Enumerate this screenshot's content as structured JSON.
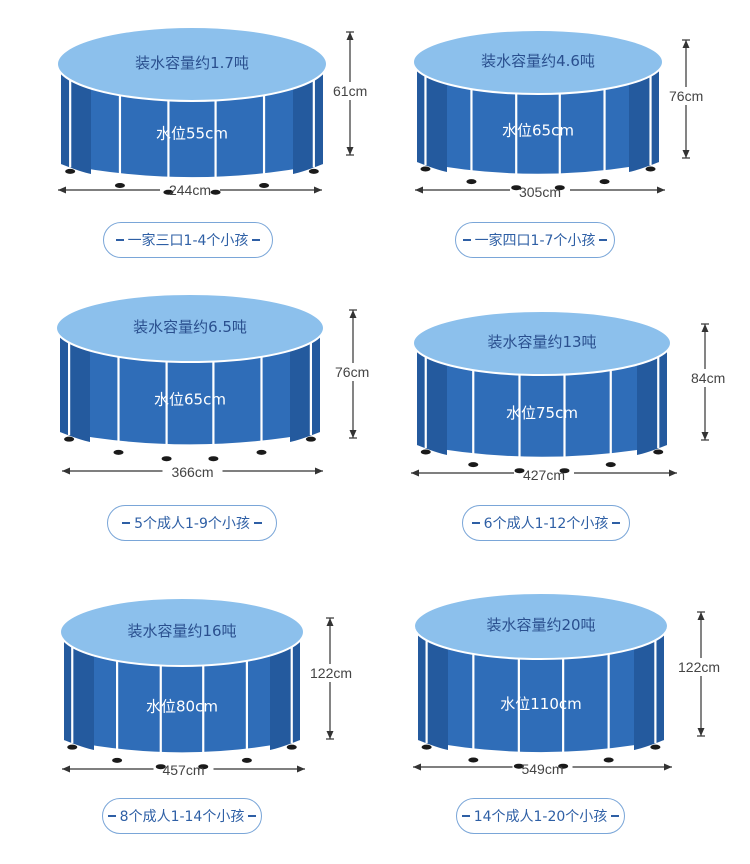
{
  "pools": [
    {
      "capacity": "装水容量约1.7吨",
      "water_level": "水位55cm",
      "height": "61cm",
      "diameter": "244cm",
      "people": "一家三口1-4个小孩"
    },
    {
      "capacity": "装水容量约4.6吨",
      "water_level": "水位65cm",
      "height": "76cm",
      "diameter": "305cm",
      "people": "一家四口1-7个小孩"
    },
    {
      "capacity": "装水容量约6.5吨",
      "water_level": "水位65cm",
      "height": "76cm",
      "diameter": "366cm",
      "people": "5个成人1-9个小孩"
    },
    {
      "capacity": "装水容量约13吨",
      "water_level": "水位75cm",
      "height": "84cm",
      "diameter": "427cm",
      "people": "6个成人1-12个小孩"
    },
    {
      "capacity": "装水容量约16吨",
      "water_level": "水位80cm",
      "height": "122cm",
      "diameter": "457cm",
      "people": "8个成人1-14个小孩"
    },
    {
      "capacity": "装水容量约20吨",
      "water_level": "水位110cm",
      "height": "122cm",
      "diameter": "549cm",
      "people": "14个成人1-20个小孩"
    }
  ],
  "colors": {
    "wall": "#2f6db8",
    "wall_dark": "#245a9e",
    "top": "#8cc0ec",
    "frame": "#ffffff",
    "badge_border": "#7aa6d8"
  }
}
